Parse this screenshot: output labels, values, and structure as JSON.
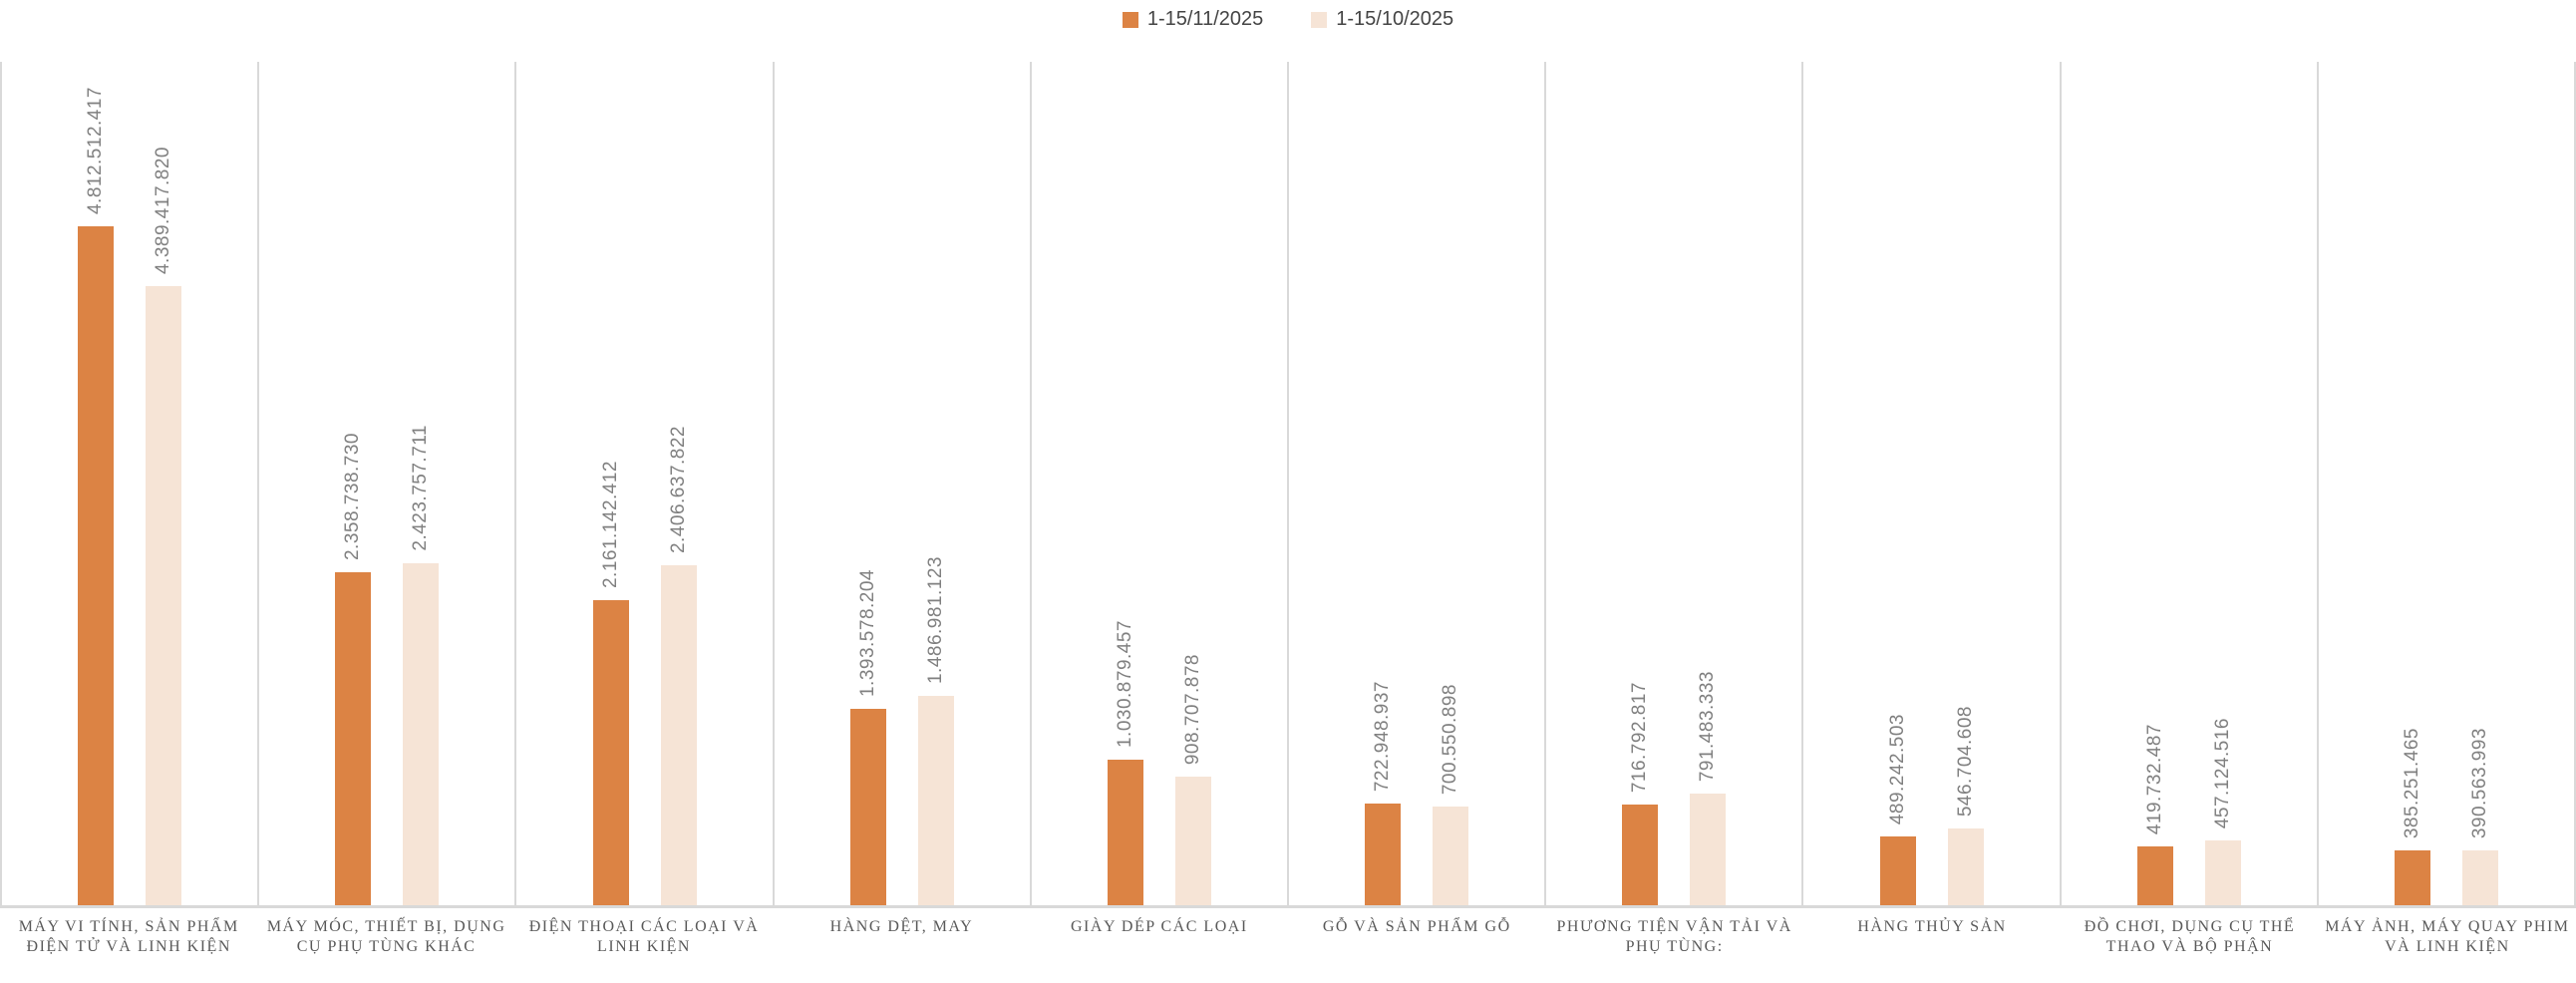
{
  "legend": {
    "position": "top-center",
    "items": [
      {
        "label": "1-15/11/2025",
        "color": "#DC8344"
      },
      {
        "label": "1-15/10/2025",
        "color": "#F6E4D6"
      }
    ]
  },
  "chart_data": {
    "type": "bar",
    "title": "",
    "xlabel": "",
    "ylabel": "",
    "value_axis_visible": false,
    "category_separator_color": "#D9D9D9",
    "data_label_rotation": "vertical-bottom-to-top",
    "categories": [
      "MÁY VI TÍNH, SẢN PHẨM ĐIỆN TỬ VÀ LINH KIỆN",
      "MÁY MÓC, THIẾT BỊ, DỤNG CỤ PHỤ TÙNG KHÁC",
      "ĐIỆN THOẠI CÁC LOẠI VÀ LINH KIỆN",
      "HÀNG DỆT, MAY",
      "GIÀY DÉP CÁC LOẠI",
      "GỖ VÀ SẢN PHẨM GỖ",
      "PHƯƠNG TIỆN VẬN TẢI VÀ PHỤ TÙNG:",
      "HÀNG THỦY SẢN",
      "ĐỒ CHƠI, DỤNG CỤ THỂ THAO VÀ BỘ PHẬN",
      "MÁY ẢNH, MÁY QUAY PHIM VÀ LINH KIỆN"
    ],
    "series": [
      {
        "name": "1-15/11/2025",
        "color": "#DC8344",
        "values": [
          4812512417,
          2358738730,
          2161142412,
          1393578204,
          1030879457,
          722948937,
          716792817,
          489242503,
          419732487,
          385251465
        ],
        "labels": [
          "4.812.512.417",
          "2.358.738.730",
          "2.161.142.412",
          "1.393.578.204",
          "1.030.879.457",
          "722.948.937",
          "716.792.817",
          "489.242.503",
          "419.732.487",
          "385.251.465"
        ]
      },
      {
        "name": "1-15/10/2025",
        "color": "#F6E4D6",
        "values": [
          4389417820,
          2423757711,
          2406637822,
          1486981123,
          908707878,
          700550898,
          791483333,
          546704608,
          457124516,
          390563993
        ],
        "labels": [
          "4.389.417.820",
          "2.423.757.711",
          "2.406.637.822",
          "1.486.981.123",
          "908.707.878",
          "700.550.898",
          "791.483.333",
          "546.704.608",
          "457.124.516",
          "390.563.993"
        ]
      }
    ]
  }
}
